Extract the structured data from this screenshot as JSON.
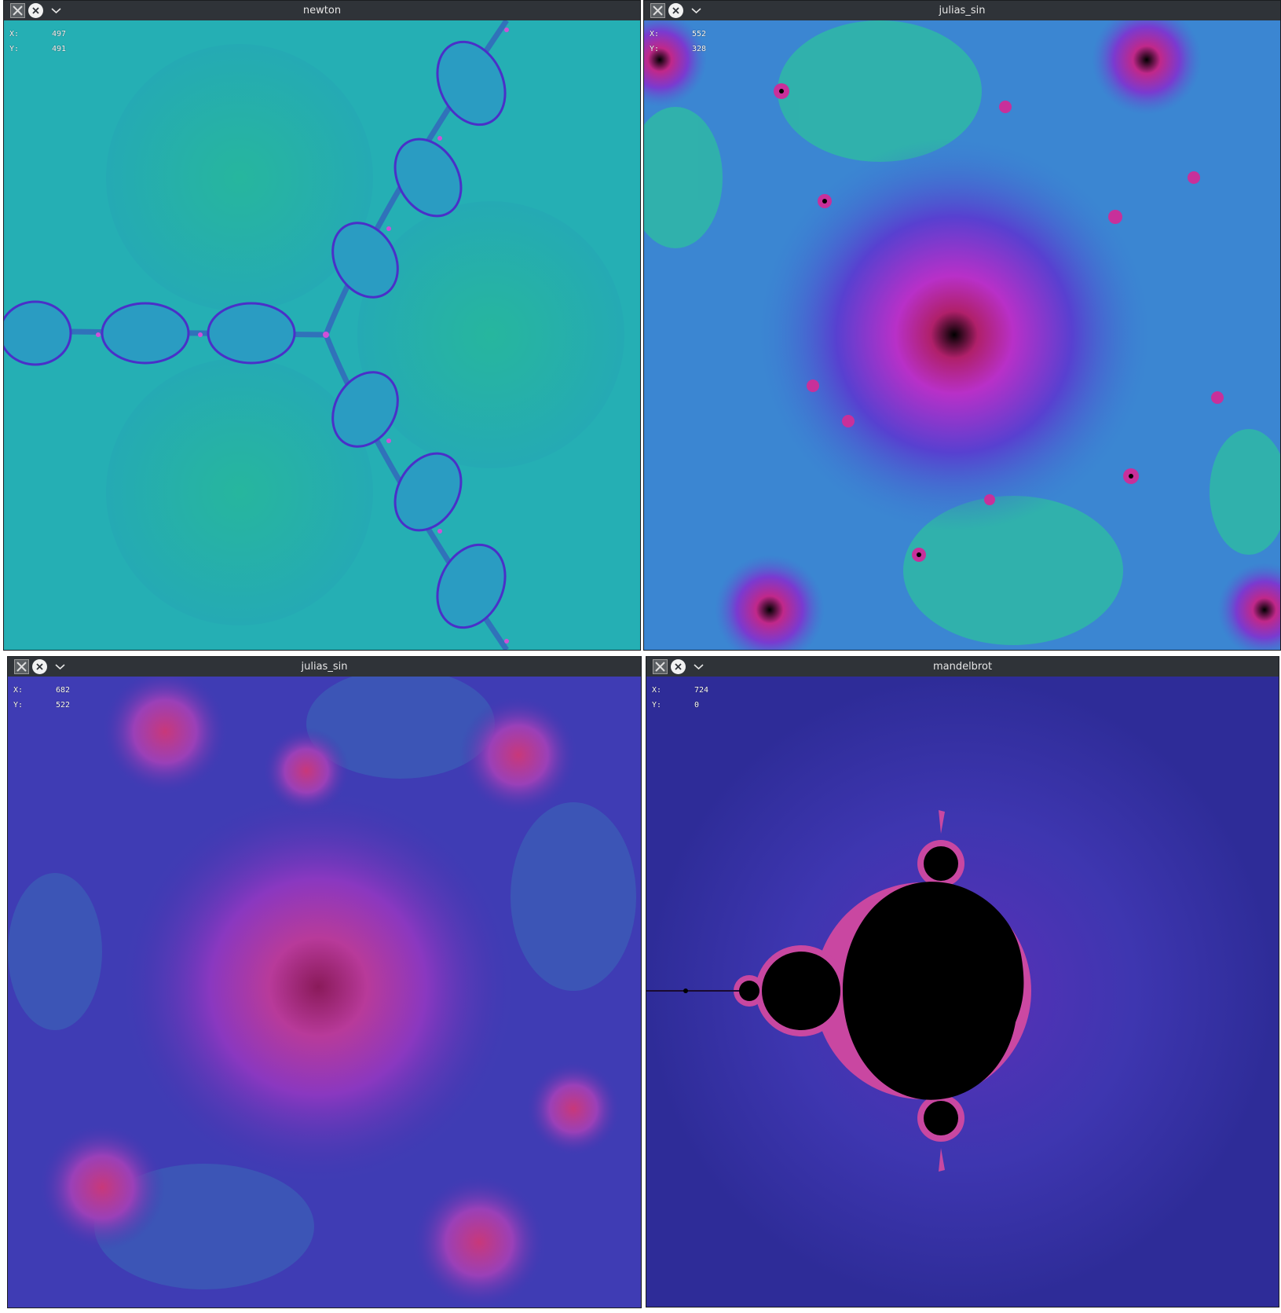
{
  "windows": [
    {
      "title": "newton",
      "coords": {
        "x_label": "X:",
        "x_value": "497",
        "y_label": "Y:",
        "y_value": "491"
      }
    },
    {
      "title": "julias_sin",
      "coords": {
        "x_label": "X:",
        "x_value": "552",
        "y_label": "Y:",
        "y_value": "328"
      }
    },
    {
      "title": "julias_sin",
      "coords": {
        "x_label": "X:",
        "x_value": "682",
        "y_label": "Y:",
        "y_value": "522"
      }
    },
    {
      "title": "mandelbrot",
      "coords": {
        "x_label": "X:",
        "x_value": "724",
        "y_label": "Y:",
        "y_value": "0"
      }
    }
  ],
  "icons": {
    "app": "x11-app-icon",
    "close": "close-icon",
    "menu": "chevron-down-icon"
  }
}
